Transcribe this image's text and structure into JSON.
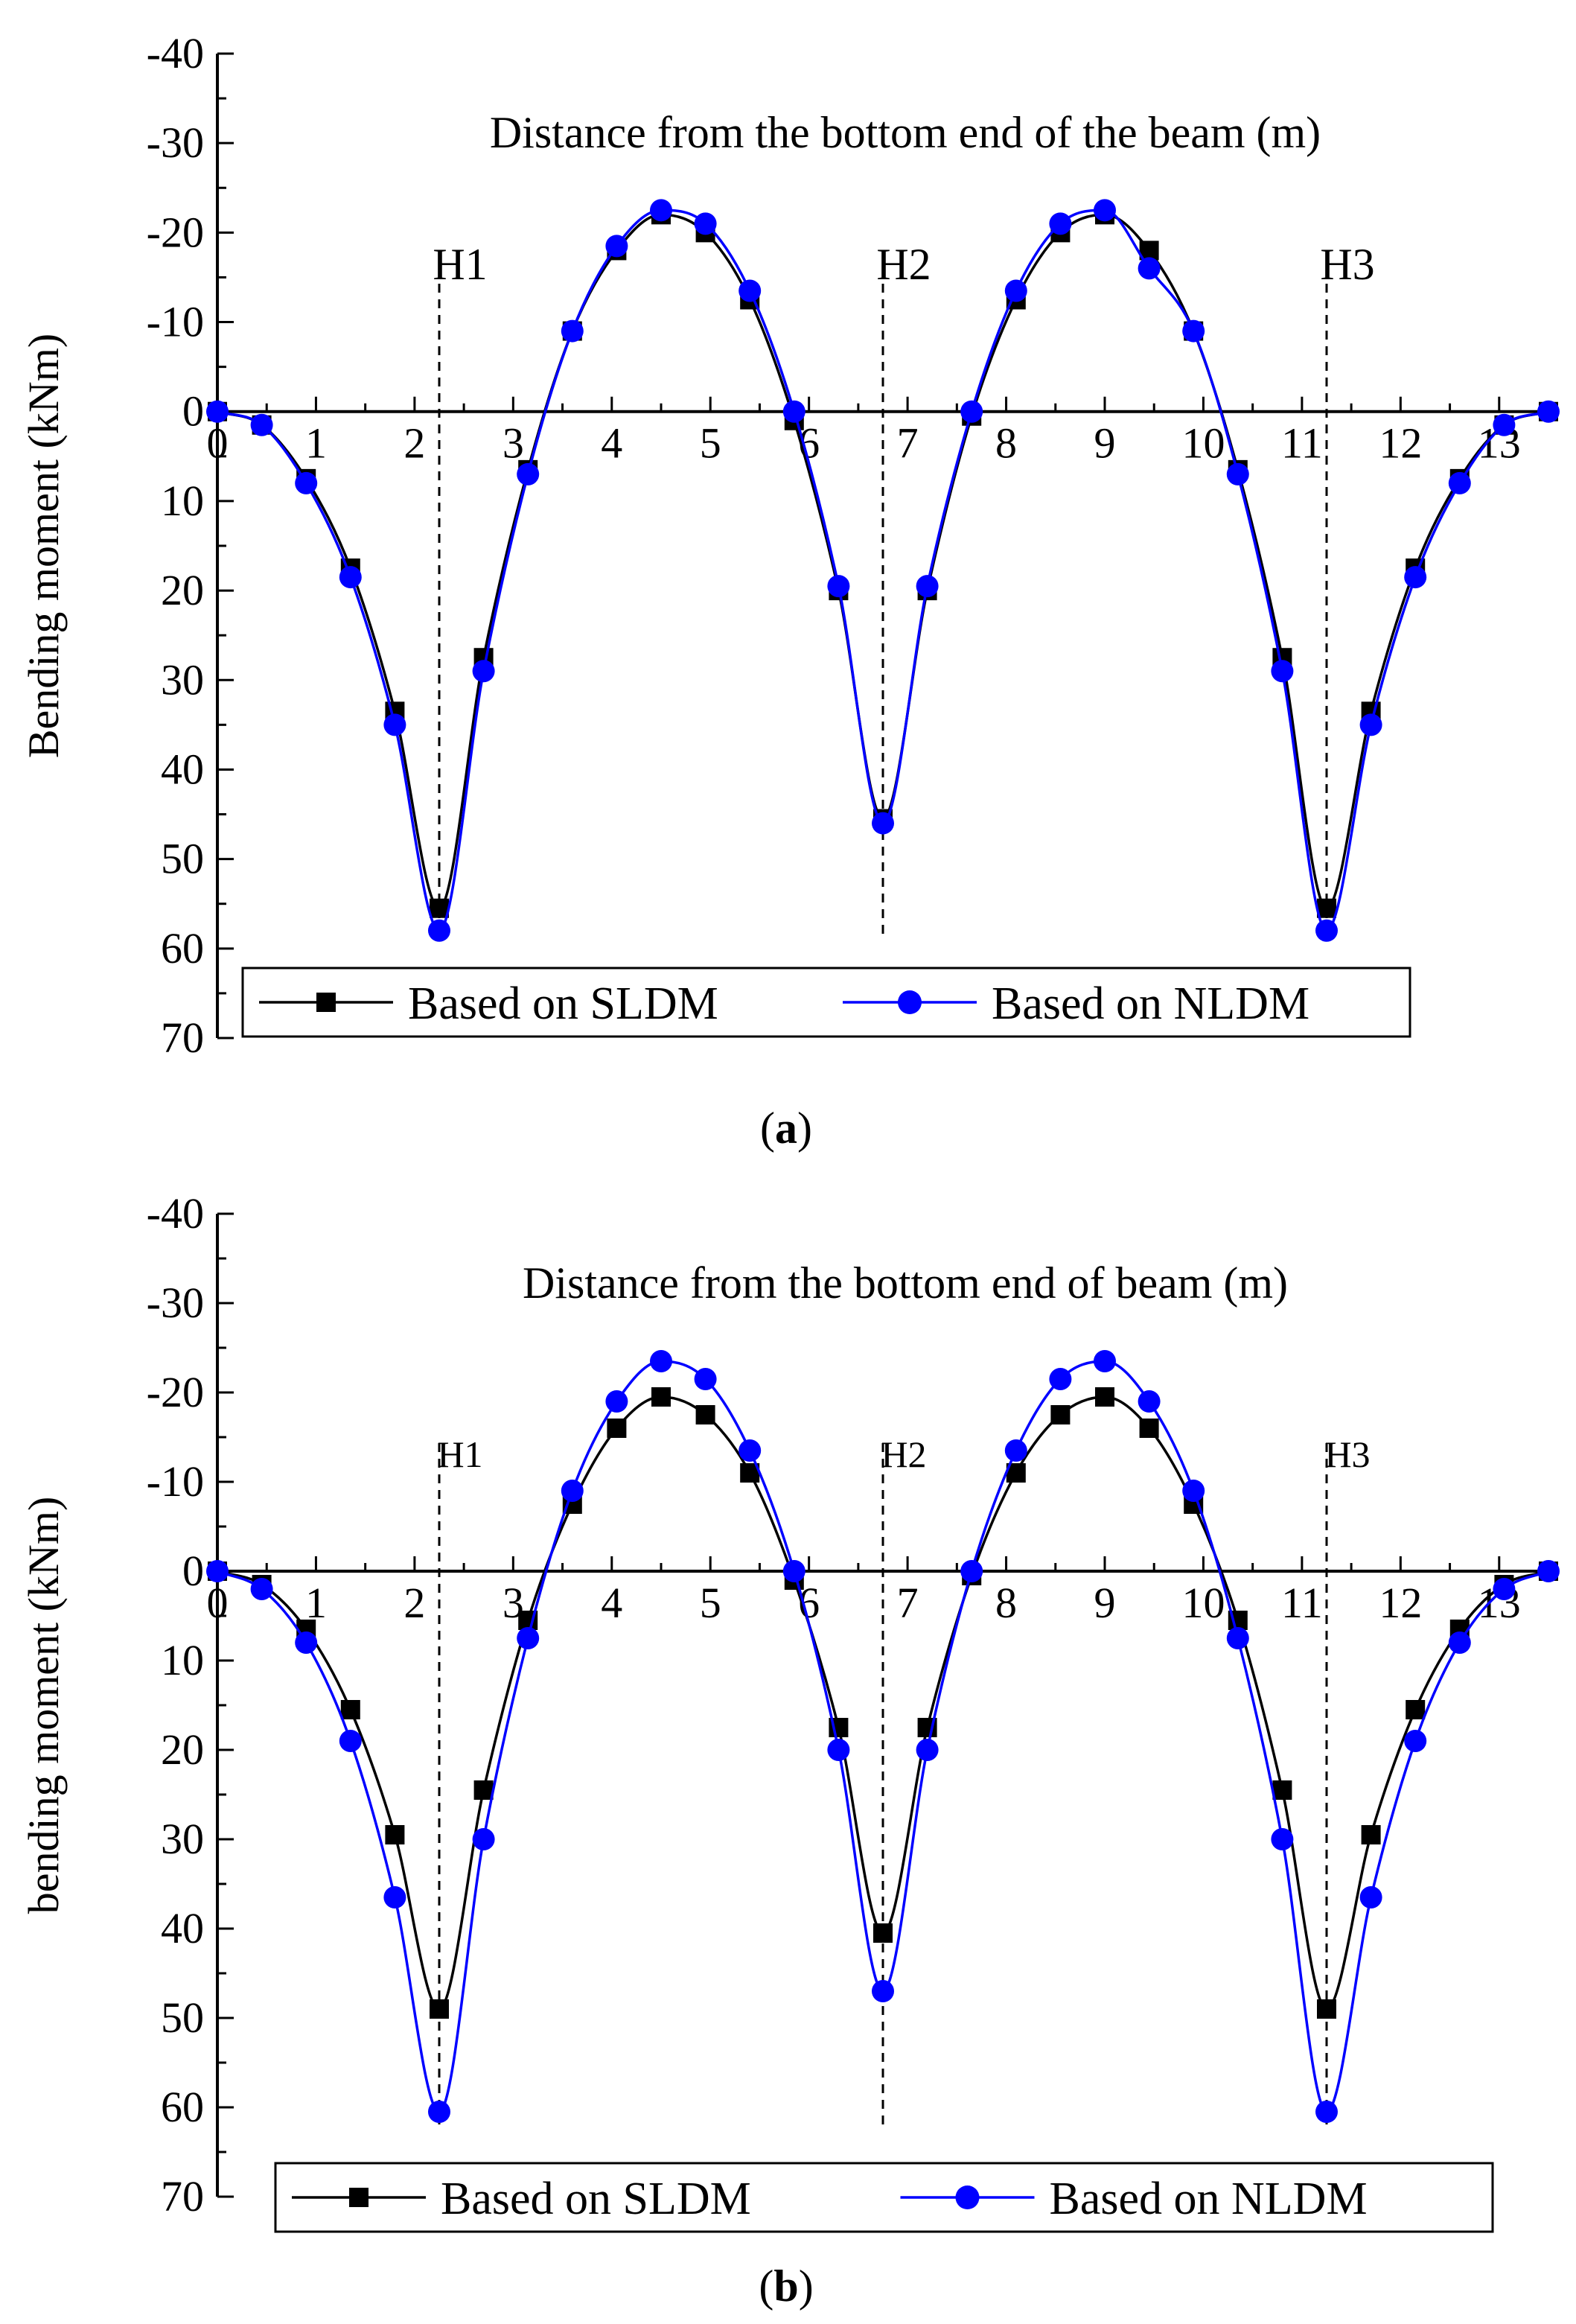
{
  "chart_data": [
    {
      "type": "line",
      "panel": "a",
      "caption_letter": "a",
      "title": "Distance from the bottom end of  the beam (m)",
      "ylabel": "Bending moment (kNm)",
      "xlabel": "Distance from the bottom end of  the beam (m)",
      "xlim": [
        0,
        13.5
      ],
      "ylim": [
        -40,
        70
      ],
      "y_inverted": true,
      "x_ticks": [
        "0",
        "1",
        "2",
        "3",
        "4",
        "5",
        "6",
        "7",
        "8",
        "9",
        "10",
        "11",
        "12",
        "13"
      ],
      "y_ticks": [
        "-40",
        "-30",
        "-20",
        "-10",
        "0",
        "10",
        "20",
        "30",
        "40",
        "50",
        "60",
        "70"
      ],
      "markers": [
        {
          "label": "H1",
          "x": 2.25
        },
        {
          "label": "H2",
          "x": 6.75
        },
        {
          "label": "H3",
          "x": 11.25
        }
      ],
      "legend": [
        "Based on SLDM",
        "Based on NLDM"
      ],
      "series": [
        {
          "name": "Based on SLDM",
          "color": "#000000",
          "marker": "square",
          "x": [
            0,
            0.45,
            0.9,
            1.35,
            1.8,
            2.25,
            2.7,
            3.15,
            3.6,
            4.05,
            4.5,
            4.95,
            5.4,
            5.85,
            6.3,
            6.75,
            7.2,
            7.65,
            8.1,
            8.55,
            9.0,
            9.45,
            9.9,
            10.35,
            10.8,
            11.25,
            11.7,
            12.15,
            12.6,
            13.05,
            13.5
          ],
          "y": [
            0,
            1.5,
            7.5,
            17.5,
            33.5,
            55.5,
            27.5,
            6.5,
            -9,
            -18,
            -22,
            -20,
            -12.5,
            1,
            20,
            45.5,
            20,
            0.5,
            -12.5,
            -20,
            -22,
            -18,
            -9,
            6.5,
            27.5,
            55.5,
            33.5,
            17.5,
            7.5,
            1.5,
            0
          ]
        },
        {
          "name": "Based on NLDM",
          "color": "#0000ff",
          "marker": "circle",
          "x": [
            0,
            0.45,
            0.9,
            1.35,
            1.8,
            2.25,
            2.7,
            3.15,
            3.6,
            4.05,
            4.5,
            4.95,
            5.4,
            5.85,
            6.3,
            6.75,
            7.2,
            7.65,
            8.1,
            8.55,
            9.0,
            9.45,
            9.9,
            10.35,
            10.8,
            11.25,
            11.7,
            12.15,
            12.6,
            13.05,
            13.5
          ],
          "y": [
            0,
            1.5,
            8,
            18.5,
            35,
            58,
            29,
            7,
            -9,
            -18.5,
            -22.5,
            -21,
            -13.5,
            0,
            19.5,
            46,
            19.5,
            0,
            -13.5,
            -21,
            -22.5,
            -16,
            -9,
            7,
            29,
            58,
            35,
            18.5,
            8,
            1.5,
            0
          ]
        }
      ]
    },
    {
      "type": "line",
      "panel": "b",
      "caption_letter": "b",
      "title": "Distance from the bottom end of beam (m)",
      "ylabel": "bending moment (kNm)",
      "xlabel": "Distance from the bottom end of beam (m)",
      "xlim": [
        0,
        13.5
      ],
      "ylim": [
        -40,
        70
      ],
      "y_inverted": true,
      "x_ticks": [
        "0",
        "1",
        "2",
        "3",
        "4",
        "5",
        "6",
        "7",
        "8",
        "9",
        "10",
        "11",
        "12",
        "13"
      ],
      "y_ticks": [
        "-40",
        "-30",
        "-20",
        "-10",
        "0",
        "10",
        "20",
        "30",
        "40",
        "50",
        "60",
        "70"
      ],
      "markers": [
        {
          "label": "H1",
          "x": 2.25
        },
        {
          "label": "H2",
          "x": 6.75
        },
        {
          "label": "H3",
          "x": 11.25
        }
      ],
      "legend": [
        "Based on SLDM",
        "Based on NLDM"
      ],
      "series": [
        {
          "name": "Based on SLDM",
          "color": "#000000",
          "marker": "square",
          "x": [
            0,
            0.45,
            0.9,
            1.35,
            1.8,
            2.25,
            2.7,
            3.15,
            3.6,
            4.05,
            4.5,
            4.95,
            5.4,
            5.85,
            6.3,
            6.75,
            7.2,
            7.65,
            8.1,
            8.55,
            9.0,
            9.45,
            9.9,
            10.35,
            10.8,
            11.25,
            11.7,
            12.15,
            12.6,
            13.05,
            13.5
          ],
          "y": [
            0,
            1.5,
            6.5,
            15.5,
            29.5,
            49,
            24.5,
            5.5,
            -7.5,
            -16,
            -19.5,
            -17.5,
            -11,
            1,
            17.5,
            40.5,
            17.5,
            0.5,
            -11,
            -17.5,
            -19.5,
            -16,
            -7.5,
            5.5,
            24.5,
            49,
            29.5,
            15.5,
            6.5,
            1.5,
            0
          ]
        },
        {
          "name": "Based on NLDM",
          "color": "#0000ff",
          "marker": "circle",
          "x": [
            0,
            0.45,
            0.9,
            1.35,
            1.8,
            2.25,
            2.7,
            3.15,
            3.6,
            4.05,
            4.5,
            4.95,
            5.4,
            5.85,
            6.3,
            6.75,
            7.2,
            7.65,
            8.1,
            8.55,
            9.0,
            9.45,
            9.9,
            10.35,
            10.8,
            11.25,
            11.7,
            12.15,
            12.6,
            13.05,
            13.5
          ],
          "y": [
            0,
            2,
            8,
            19,
            36.5,
            60.5,
            30,
            7.5,
            -9,
            -19,
            -23.5,
            -21.5,
            -13.5,
            0,
            20,
            47,
            20,
            0,
            -13.5,
            -21.5,
            -23.5,
            -19,
            -9,
            7.5,
            30,
            60.5,
            36.5,
            19,
            8,
            2,
            0
          ]
        }
      ]
    }
  ]
}
